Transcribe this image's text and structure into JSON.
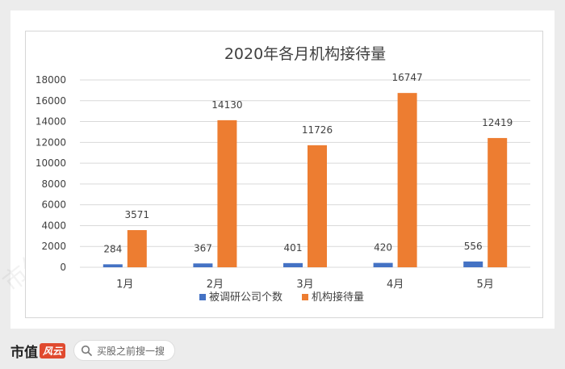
{
  "chart_data": {
    "type": "bar",
    "title": "2020年各月机构接待量",
    "categories": [
      "1月",
      "2月",
      "3月",
      "4月",
      "5月"
    ],
    "series": [
      {
        "name": "被调研公司个数",
        "color": "#4472c4",
        "values": [
          284,
          367,
          401,
          420,
          556
        ]
      },
      {
        "name": "机构接待量",
        "color": "#ed7d31",
        "values": [
          3571,
          14130,
          11726,
          16747,
          12419
        ]
      }
    ],
    "ylim": [
      0,
      18000
    ],
    "yticks": [
      0,
      2000,
      4000,
      6000,
      8000,
      10000,
      12000,
      14000,
      16000,
      18000
    ],
    "grid": true,
    "legend": "bottom"
  },
  "footer": {
    "brand_name": "市值",
    "brand_badge": "风云",
    "search_placeholder": "买股之前搜一搜",
    "search_icon": "search-icon"
  },
  "watermark": "市值风云"
}
